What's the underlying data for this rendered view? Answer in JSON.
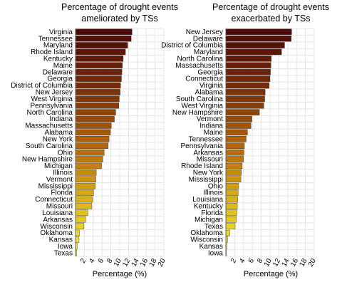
{
  "chart_data": [
    {
      "type": "bar",
      "orientation": "horizontal",
      "title_line1": "Percentage of drought events",
      "title_line2": "ameliorated by TSs",
      "xlabel": "Percentage (%)",
      "xlim": [
        0,
        20
      ],
      "xticks": [
        2,
        4,
        6,
        8,
        10,
        12,
        14,
        16,
        18,
        20
      ],
      "grid": true,
      "categories": [
        "Virginia",
        "Tennessee",
        "Maryland",
        "Rhode Island",
        "Kentucky",
        "Maine",
        "Delaware",
        "Georgia",
        "District of Columbia",
        "New Jersey",
        "West Virginia",
        "Pennsylvania",
        "North Carolina",
        "Indiana",
        "Massachusetts",
        "Alabama",
        "New York",
        "South Carolina",
        "Ohio",
        "New Hampshire",
        "Michigan",
        "Illinois",
        "Vermont",
        "Mississippi",
        "Florida",
        "Connecticut",
        "Missouri",
        "Louisiana",
        "Arkansas",
        "Wisconsin",
        "Oklahoma",
        "Kansas",
        "Iowa",
        "Texas"
      ],
      "values": [
        12.8,
        12.6,
        11.8,
        11.3,
        10.8,
        10.6,
        10.5,
        10.4,
        10.2,
        10.1,
        9.9,
        9.8,
        9.1,
        8.8,
        8.1,
        7.9,
        7.6,
        7.4,
        6.5,
        6.2,
        5.9,
        4.7,
        4.6,
        4.5,
        4.1,
        3.9,
        3.7,
        2.8,
        2.3,
        1.9,
        0.9,
        0.8,
        0.4,
        0.3
      ]
    },
    {
      "type": "bar",
      "orientation": "horizontal",
      "title_line1": "Percentage of drought events",
      "title_line2": "exacerbated by TSs",
      "xlabel": "Percentage (%)",
      "xlim": [
        0,
        20
      ],
      "xticks": [
        2,
        4,
        6,
        8,
        10,
        12,
        14,
        16,
        18,
        20
      ],
      "grid": true,
      "categories": [
        "New Jersey",
        "Delaware",
        "District of Columbia",
        "Maryland",
        "North Carolina",
        "Massachusetts",
        "Georgia",
        "Connecticut",
        "Virginia",
        "Alabama",
        "South Carolina",
        "West Virginia",
        "New Hampshire",
        "Vermont",
        "Indiana",
        "Maine",
        "Tennessee",
        "Pennsylvania",
        "Arkansas",
        "Missouri",
        "Rhode Island",
        "New York",
        "Mississippi",
        "Ohio",
        "Illinois",
        "Louisiana",
        "Kentucky",
        "Florida",
        "Michigan",
        "Texas",
        "Oklahoma",
        "Wisconsin",
        "Kansas",
        "Iowa"
      ],
      "values": [
        14.9,
        14.8,
        13.3,
        12.6,
        10.3,
        10.2,
        10.1,
        10.0,
        9.8,
        8.9,
        8.8,
        8.6,
        7.6,
        5.9,
        5.7,
        4.9,
        4.6,
        4.2,
        4.1,
        4.0,
        3.7,
        3.5,
        3.4,
        2.9,
        2.8,
        2.7,
        2.6,
        2.5,
        2.4,
        2.1,
        0.9,
        0.4,
        0.2,
        0.1
      ]
    }
  ]
}
